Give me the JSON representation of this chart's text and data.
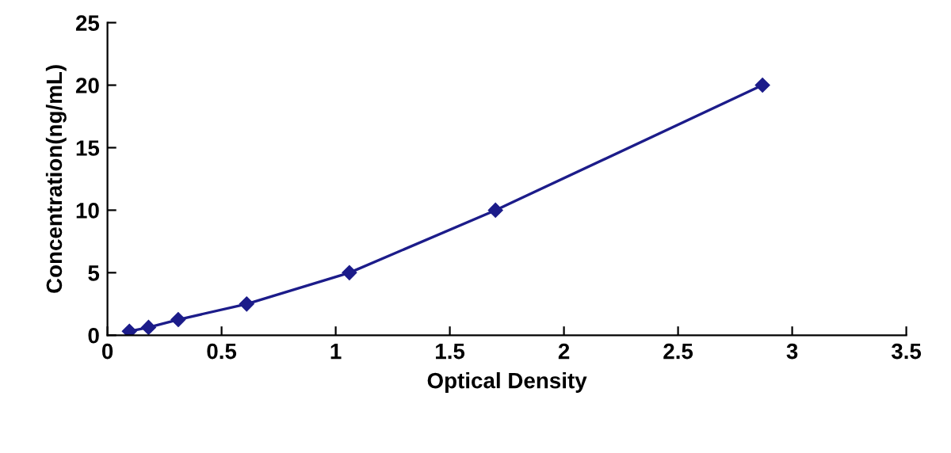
{
  "chart_data": {
    "type": "line",
    "xlabel": "Optical Density",
    "ylabel": "Concentration(ng/mL)",
    "x": [
      0.096,
      0.18,
      0.31,
      0.61,
      1.06,
      1.7,
      2.87
    ],
    "series": [
      {
        "color": "#1c1c8a",
        "values": [
          0.312,
          0.625,
          1.25,
          2.5,
          5,
          10,
          20
        ]
      }
    ],
    "xlim": [
      0,
      3.5
    ],
    "xticks": [
      0,
      0.5,
      1,
      1.5,
      2,
      2.5,
      3,
      3.5
    ],
    "ylim": [
      0,
      25
    ],
    "yticks": [
      0,
      5,
      10,
      15,
      20,
      25
    ],
    "marker": "diamond",
    "line_style": "solid",
    "grid": false,
    "legend": false
  }
}
